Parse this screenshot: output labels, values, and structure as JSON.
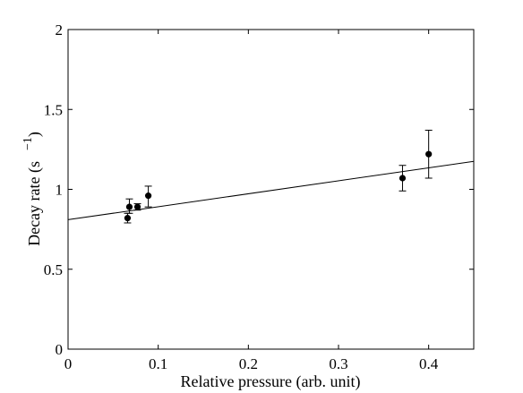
{
  "chart_data": {
    "type": "scatter",
    "title": "",
    "xlabel": "Relative pressure (arb. unit)",
    "ylabel": "Decay rate (s",
    "ylabel_superscript": "−1",
    "ylabel_suffix": ")",
    "xlim": [
      0,
      0.45
    ],
    "ylim": [
      0,
      2
    ],
    "xticks": [
      0,
      0.1,
      0.2,
      0.3,
      0.4
    ],
    "xtick_labels": [
      "0",
      "0.1",
      "0.2",
      "0.3",
      "0.4"
    ],
    "yticks": [
      0,
      0.5,
      1,
      1.5,
      2
    ],
    "ytick_labels": [
      "0",
      "0.5",
      "1",
      "1.5",
      "2"
    ],
    "grid": false,
    "legend": "none",
    "colors": {
      "points": "#000000",
      "fit_line": "#000000",
      "axes": "#000000"
    },
    "series": [
      {
        "points": [
          {
            "x": 0.066,
            "y": 0.82,
            "err_low": 0.03,
            "err_high": 0.03
          },
          {
            "x": 0.068,
            "y": 0.89,
            "err_low": 0.04,
            "err_high": 0.05
          },
          {
            "x": 0.077,
            "y": 0.89,
            "err_low": 0.02,
            "err_high": 0.02
          },
          {
            "x": 0.089,
            "y": 0.96,
            "err_low": 0.07,
            "err_high": 0.06
          },
          {
            "x": 0.371,
            "y": 1.07,
            "err_low": 0.08,
            "err_high": 0.08
          },
          {
            "x": 0.4,
            "y": 1.22,
            "err_low": 0.15,
            "err_high": 0.15
          }
        ]
      }
    ],
    "fit_line": {
      "x": [
        0,
        0.45
      ],
      "y": [
        0.81,
        1.175
      ]
    }
  }
}
